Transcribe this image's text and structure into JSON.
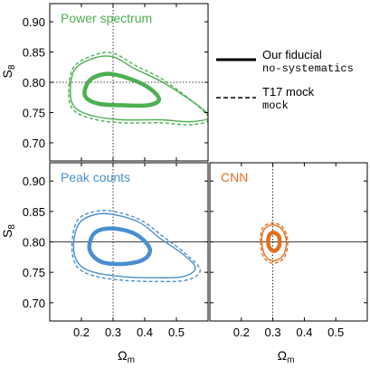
{
  "chart_data": [
    {
      "type": "line",
      "panel": "top-left",
      "title": "Power spectrum",
      "title_color": "#4caf50",
      "color": "#4caf50",
      "xlabel": "",
      "ylabel": "S8",
      "ylabel_sub": "8",
      "xlim": [
        0.1,
        0.6
      ],
      "ylim": [
        0.67,
        0.93
      ],
      "yticks": [
        0.7,
        0.75,
        0.8,
        0.85,
        0.9
      ],
      "ytick_labels": [
        "0.70",
        "0.75",
        "0.80",
        "0.85",
        "0.90"
      ],
      "xticks": [
        0.2,
        0.3,
        0.4,
        0.5
      ],
      "xtick_labels": [],
      "fiducial": {
        "x": 0.3,
        "y": 0.8
      },
      "series": [
        {
          "style": "solid",
          "points": [
            [
              0.21,
              0.785
            ],
            [
              0.23,
              0.805
            ],
            [
              0.28,
              0.814
            ],
            [
              0.34,
              0.808
            ],
            [
              0.41,
              0.792
            ],
            [
              0.445,
              0.772
            ],
            [
              0.41,
              0.762
            ],
            [
              0.33,
              0.762
            ],
            [
              0.26,
              0.764
            ],
            [
              0.22,
              0.772
            ]
          ]
        },
        {
          "style": "solid",
          "points": [
            [
              0.165,
              0.785
            ],
            [
              0.18,
              0.822
            ],
            [
              0.24,
              0.84
            ],
            [
              0.3,
              0.842
            ],
            [
              0.37,
              0.822
            ],
            [
              0.47,
              0.796
            ],
            [
              0.6,
              0.747
            ],
            [
              0.55,
              0.735
            ],
            [
              0.45,
              0.738
            ],
            [
              0.33,
              0.738
            ],
            [
              0.24,
              0.744
            ],
            [
              0.18,
              0.758
            ]
          ]
        },
        {
          "style": "dashed",
          "points": [
            [
              0.16,
              0.783
            ],
            [
              0.175,
              0.825
            ],
            [
              0.24,
              0.845
            ],
            [
              0.3,
              0.848
            ],
            [
              0.37,
              0.828
            ],
            [
              0.47,
              0.8
            ],
            [
              0.6,
              0.744
            ],
            [
              0.55,
              0.73
            ],
            [
              0.45,
              0.733
            ],
            [
              0.33,
              0.733
            ],
            [
              0.24,
              0.739
            ],
            [
              0.175,
              0.754
            ]
          ]
        }
      ]
    },
    {
      "type": "line",
      "panel": "bottom-left",
      "title": "Peak counts",
      "title_color": "#4a8fd0",
      "color": "#4a8fd0",
      "xlabel": "Ωm",
      "xlabel_sub": "m",
      "ylabel": "S8",
      "ylabel_sub": "8",
      "xlim": [
        0.1,
        0.6
      ],
      "ylim": [
        0.67,
        0.93
      ],
      "yticks": [
        0.7,
        0.75,
        0.8,
        0.85,
        0.9
      ],
      "ytick_labels": [
        "0.70",
        "0.75",
        "0.80",
        "0.85",
        "0.90"
      ],
      "xticks": [
        0.2,
        0.3,
        0.4,
        0.5
      ],
      "xtick_labels": [
        "0.2",
        "0.3",
        "0.4",
        "0.5"
      ],
      "fiducial": {
        "x": 0.3,
        "y": 0.8
      },
      "series": [
        {
          "style": "solid",
          "points": [
            [
              0.225,
              0.795
            ],
            [
              0.245,
              0.816
            ],
            [
              0.3,
              0.822
            ],
            [
              0.37,
              0.813
            ],
            [
              0.415,
              0.79
            ],
            [
              0.4,
              0.772
            ],
            [
              0.34,
              0.764
            ],
            [
              0.27,
              0.766
            ],
            [
              0.235,
              0.778
            ]
          ]
        },
        {
          "style": "solid",
          "points": [
            [
              0.175,
              0.795
            ],
            [
              0.195,
              0.832
            ],
            [
              0.255,
              0.846
            ],
            [
              0.32,
              0.843
            ],
            [
              0.39,
              0.83
            ],
            [
              0.45,
              0.805
            ],
            [
              0.52,
              0.78
            ],
            [
              0.56,
              0.757
            ],
            [
              0.52,
              0.743
            ],
            [
              0.43,
              0.741
            ],
            [
              0.33,
              0.743
            ],
            [
              0.24,
              0.75
            ],
            [
              0.19,
              0.765
            ]
          ]
        },
        {
          "style": "dashed",
          "points": [
            [
              0.17,
              0.795
            ],
            [
              0.19,
              0.837
            ],
            [
              0.255,
              0.851
            ],
            [
              0.32,
              0.848
            ],
            [
              0.39,
              0.835
            ],
            [
              0.455,
              0.81
            ],
            [
              0.53,
              0.78
            ],
            [
              0.575,
              0.753
            ],
            [
              0.53,
              0.737
            ],
            [
              0.43,
              0.735
            ],
            [
              0.33,
              0.737
            ],
            [
              0.24,
              0.744
            ],
            [
              0.185,
              0.76
            ]
          ]
        }
      ]
    },
    {
      "type": "line",
      "panel": "bottom-right",
      "title": "CNN",
      "title_color": "#e07020",
      "color": "#e07020",
      "xlabel": "Ωm",
      "xlabel_sub": "m",
      "ylabel": "",
      "xlim": [
        0.1,
        0.6
      ],
      "ylim": [
        0.67,
        0.93
      ],
      "xticks": [
        0.2,
        0.3,
        0.4,
        0.5
      ],
      "xtick_labels": [
        "0.2",
        "0.3",
        "0.4",
        "0.5"
      ],
      "yticks": [
        0.7,
        0.75,
        0.8,
        0.85,
        0.9
      ],
      "ytick_labels": [],
      "fiducial": {
        "x": 0.3,
        "y": 0.8
      },
      "series": [
        {
          "style": "solid",
          "points": [
            [
              0.285,
              0.8
            ],
            [
              0.29,
              0.812
            ],
            [
              0.305,
              0.815
            ],
            [
              0.32,
              0.808
            ],
            [
              0.32,
              0.793
            ],
            [
              0.305,
              0.785
            ],
            [
              0.29,
              0.79
            ]
          ]
        },
        {
          "style": "solid",
          "points": [
            [
              0.265,
              0.8
            ],
            [
              0.272,
              0.82
            ],
            [
              0.3,
              0.828
            ],
            [
              0.33,
              0.82
            ],
            [
              0.343,
              0.8
            ],
            [
              0.332,
              0.777
            ],
            [
              0.3,
              0.769
            ],
            [
              0.275,
              0.778
            ]
          ]
        },
        {
          "style": "dashed",
          "points": [
            [
              0.261,
              0.8
            ],
            [
              0.268,
              0.823
            ],
            [
              0.3,
              0.831
            ],
            [
              0.333,
              0.823
            ],
            [
              0.347,
              0.8
            ],
            [
              0.336,
              0.774
            ],
            [
              0.3,
              0.765
            ],
            [
              0.271,
              0.775
            ]
          ]
        }
      ]
    }
  ],
  "legend": {
    "placement": "top-right",
    "items": [
      {
        "style": "solid",
        "line1": "Our fiducial",
        "line2": "no-systematics"
      },
      {
        "style": "dashed",
        "line1": "T17 mock",
        "line2": "mock"
      }
    ]
  }
}
